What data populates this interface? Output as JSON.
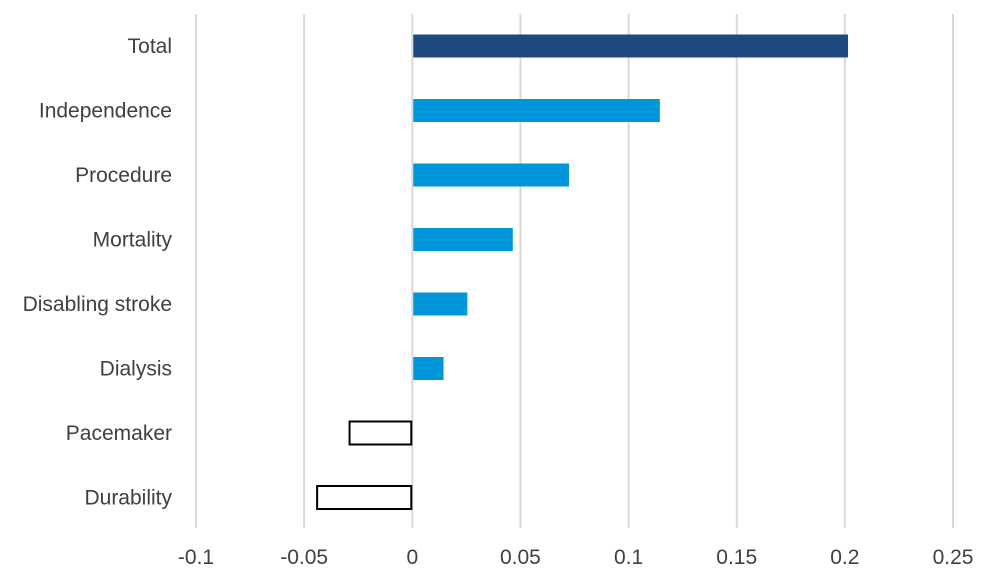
{
  "chart_data": {
    "type": "bar",
    "orientation": "horizontal",
    "title": "",
    "xlabel": "",
    "ylabel": "",
    "categories": [
      "Total",
      "Independence",
      "Procedure",
      "Mortality",
      "Disabling stroke",
      "Dialysis",
      "Pacemaker",
      "Durability"
    ],
    "values": [
      0.201,
      0.114,
      0.072,
      0.046,
      0.025,
      0.014,
      -0.029,
      -0.044
    ],
    "x_ticks": [
      "-0.1",
      "-0.05",
      "0",
      "0.05",
      "0.1",
      "0.15",
      "0.2",
      "0.25"
    ],
    "xlim": [
      -0.1,
      0.25
    ],
    "grid": "vertical",
    "legend": "none",
    "colors": {
      "total": "#1f497d",
      "positive": "#0096db",
      "negative_fill": "#ffffff",
      "negative_stroke": "#000000"
    }
  }
}
